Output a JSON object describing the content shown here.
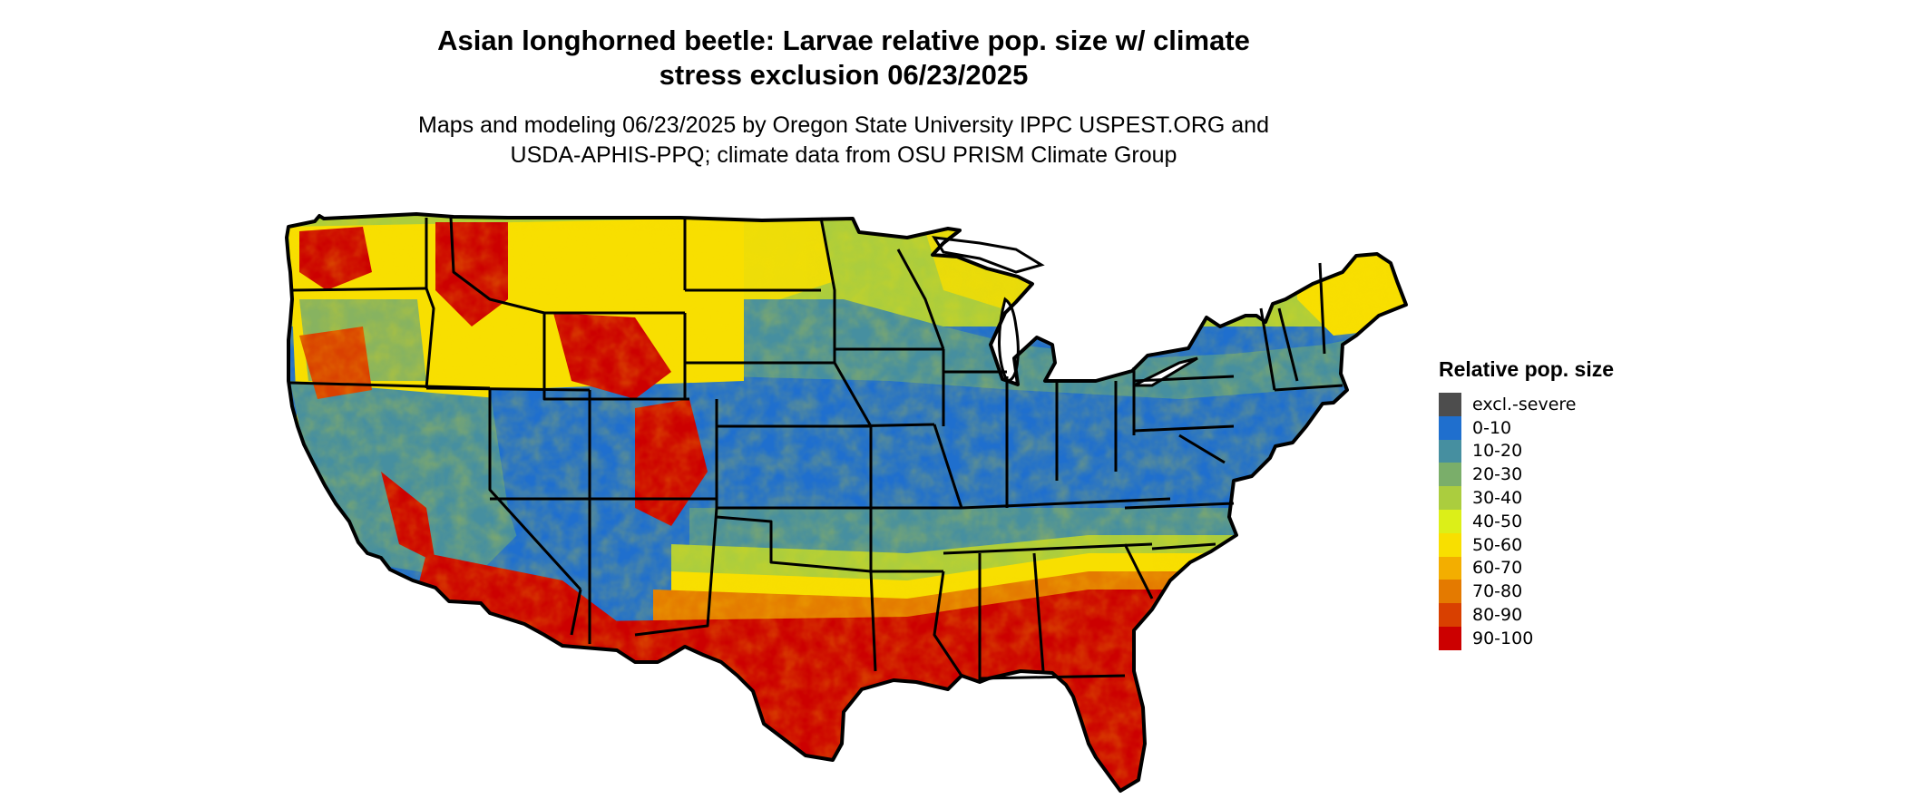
{
  "title": "Asian longhorned beetle: Larvae relative pop. size w/ climate stress exclusion 06/23/2025",
  "title_lines": [
    "Asian longhorned beetle: Larvae relative pop. size w/ climate",
    "stress exclusion 06/23/2025"
  ],
  "subtitle_lines": [
    "Maps and modeling 06/23/2025 by Oregon State University IPPC USPEST.ORG and",
    "USDA-APHIS-PPQ; climate data from OSU PRISM Climate Group"
  ],
  "legend": {
    "title": "Relative pop. size",
    "items": [
      {
        "label": "excl.-severe",
        "color": "#4d4d4d"
      },
      {
        "label": "0-10",
        "color": "#1f6fce"
      },
      {
        "label": "10-20",
        "color": "#468fa0"
      },
      {
        "label": "20-30",
        "color": "#7aae6a"
      },
      {
        "label": "30-40",
        "color": "#abcd3e"
      },
      {
        "label": "40-50",
        "color": "#dcef18"
      },
      {
        "label": "50-60",
        "color": "#f8df00"
      },
      {
        "label": "60-70",
        "color": "#f3ae00"
      },
      {
        "label": "70-80",
        "color": "#e47a00"
      },
      {
        "label": "80-90",
        "color": "#d94000"
      },
      {
        "label": "90-100",
        "color": "#cc0000"
      }
    ]
  },
  "map": {
    "region": "Contiguous United States",
    "border_color": "#000000"
  }
}
